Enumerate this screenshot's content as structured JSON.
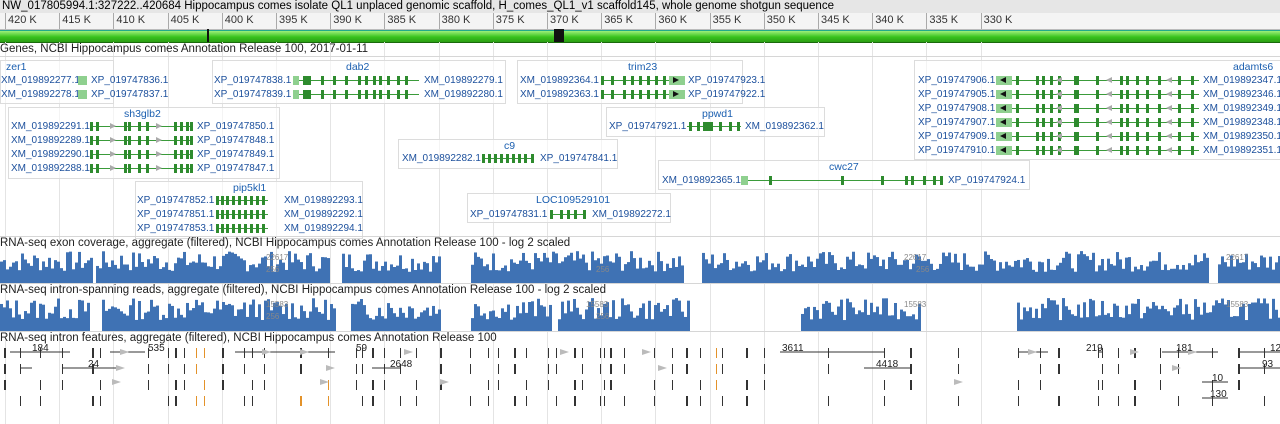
{
  "title": "NW_017805994.1:327222..420684 Hippocampus comes isolate QL1 unplaced genomic scaffold, H_comes_QL1_v1 scaffold145, whole genome shotgun sequence",
  "ruler": [
    "420 K",
    "415 K",
    "410 K",
    "405 K",
    "400 K",
    "395 K",
    "390 K",
    "385 K",
    "380 K",
    "375 K",
    "370 K",
    "365 K",
    "360 K",
    "355 K",
    "350 K",
    "345 K",
    "340 K",
    "335 K",
    "330 K"
  ],
  "tracks": {
    "genes": "Genes, NCBI Hippocampus comes Annotation Release 100, 2017-01-11",
    "exon_cov": "RNA-seq exon coverage, aggregate (filtered), NCBI Hippocampus comes Annotation Release 100 - log 2 scaled",
    "intron_reads": "RNA-seq intron-spanning reads, aggregate (filtered), NCBI Hippocampus comes Annotation Release 100 - log 2 scaled",
    "intron_feat": "RNA-seq intron features, aggregate (filtered), NCBI Hippocampus comes Annotation Release 100"
  },
  "coverage_scale": {
    "exon": "22617",
    "exon_mid": "256",
    "intron": "15583",
    "intron_mid": "256"
  },
  "genes": [
    {
      "name": "zer1",
      "labels": [
        [
          "XM_019892277.1",
          "XP_019747836.1"
        ],
        [
          "XM_019892278.1",
          "XP_019747837.1"
        ]
      ]
    },
    {
      "name": "dab2",
      "labels": [
        [
          "XP_019747838.1",
          "XM_019892279.1"
        ],
        [
          "XP_019747839.1",
          "XM_019892280.1"
        ]
      ]
    },
    {
      "name": "trim23",
      "labels": [
        [
          "XM_019892364.1",
          "XP_019747923.1"
        ],
        [
          "XM_019892363.1",
          "XP_019747922.1"
        ]
      ]
    },
    {
      "name": "adamts6",
      "labels": [
        [
          "XP_019747906.1",
          "XM_019892347.1"
        ],
        [
          "XP_019747905.1",
          "XM_019892346.1"
        ],
        [
          "XP_019747908.1",
          "XM_019892349.1"
        ],
        [
          "XP_019747907.1",
          "XM_019892348.1"
        ],
        [
          "XP_019747909.1",
          "XM_019892350.1"
        ],
        [
          "XP_019747910.1",
          "XM_019892351.1"
        ]
      ]
    },
    {
      "name": "sh3glb2",
      "labels": [
        [
          "XM_019892291.1",
          "XP_019747850.1"
        ],
        [
          "XM_019892289.1",
          "XP_019747848.1"
        ],
        [
          "XM_019892290.1",
          "XP_019747849.1"
        ],
        [
          "XM_019892288.1",
          "XP_019747847.1"
        ]
      ]
    },
    {
      "name": "ppwd1",
      "labels": [
        [
          "XP_019747921.1",
          "XM_019892362.1"
        ]
      ]
    },
    {
      "name": "c9",
      "labels": [
        [
          "XM_019892282.1",
          "XP_019747841.1"
        ]
      ]
    },
    {
      "name": "cwc27",
      "labels": [
        [
          "XM_019892365.1",
          "XP_019747924.1"
        ]
      ]
    },
    {
      "name": "pip5kl1",
      "labels": [
        [
          "XP_019747852.1",
          "XM_019892293.1"
        ],
        [
          "XP_019747851.1",
          "XM_019892292.1"
        ],
        [
          "XP_019747853.1",
          "XM_019892294.1"
        ]
      ]
    },
    {
      "name": "LOC109529101",
      "labels": [
        [
          "XP_019747831.1",
          "XM_019892272.1"
        ]
      ]
    }
  ],
  "intron_counts": [
    "184",
    "535",
    "59",
    "3611",
    "219",
    "181",
    "12",
    "24",
    "2648",
    "4418",
    "93",
    "10",
    "130"
  ]
}
